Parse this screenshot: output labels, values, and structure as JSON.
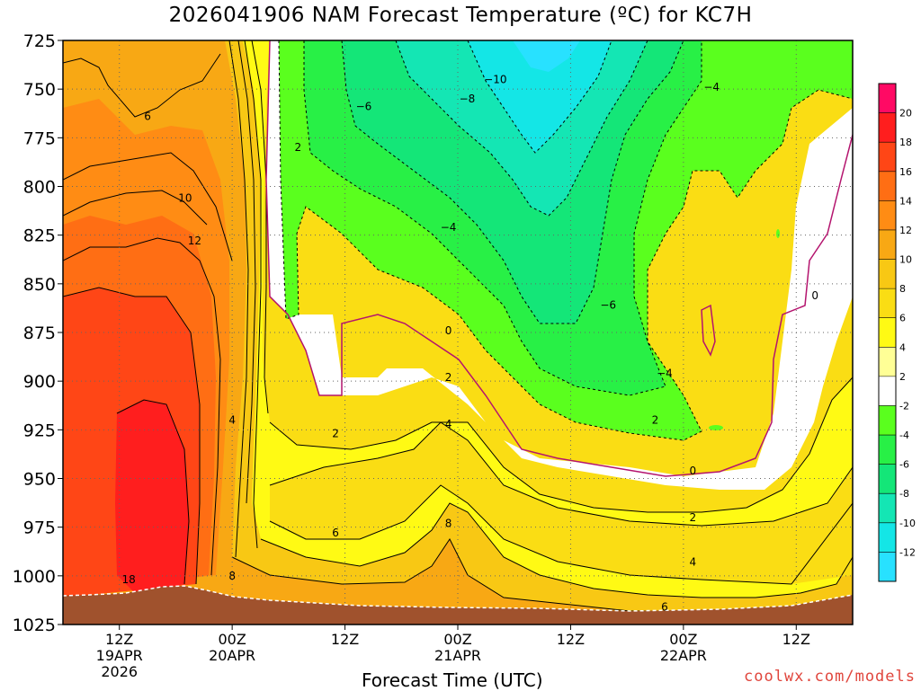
{
  "title": "2026041906 NAM Forecast Temperature (ºC) for KC7H",
  "xlabel": "Forecast Time (UTC)",
  "credit": "coolwx.com/models",
  "chart_data": {
    "type": "heatmap",
    "title": "2026041906 NAM Forecast Temperature (ºC) for KC7H",
    "xlabel": "Forecast Time (UTC)",
    "ylabel": "",
    "y_axis_inverted": true,
    "ylim": [
      1025,
      725
    ],
    "xlim_hours": [
      6,
      90
    ],
    "y_ticks": [
      725,
      750,
      775,
      800,
      825,
      850,
      875,
      900,
      925,
      950,
      975,
      1000,
      1025
    ],
    "x_ticks": [
      {
        "hour": 12,
        "lines": [
          "12Z",
          "19APR",
          "2026"
        ]
      },
      {
        "hour": 24,
        "lines": [
          "00Z",
          "20APR"
        ]
      },
      {
        "hour": 36,
        "lines": [
          "12Z"
        ]
      },
      {
        "hour": 48,
        "lines": [
          "00Z",
          "21APR"
        ]
      },
      {
        "hour": 60,
        "lines": [
          "12Z"
        ]
      },
      {
        "hour": 72,
        "lines": [
          "00Z",
          "22APR"
        ]
      },
      {
        "hour": 84,
        "lines": [
          "12Z"
        ]
      }
    ],
    "grid": true,
    "colorbar": {
      "levels": [
        20,
        18,
        16,
        14,
        12,
        10,
        8,
        6,
        4,
        2,
        -2,
        -4,
        -6,
        -8,
        -10,
        -12
      ],
      "colors": [
        "#ff0a64",
        "#ff1e1e",
        "#ff4616",
        "#ff6e14",
        "#ff8c14",
        "#f8a814",
        "#f8c814",
        "#fadd14",
        "#fffa14",
        "#ffff96",
        "#ffffff",
        "#5aff1e",
        "#28f046",
        "#14e678",
        "#14e6b4",
        "#14e6e6",
        "#28e1ff"
      ]
    },
    "contour_labels": [
      {
        "text": "6",
        "hour": 15,
        "p": 764
      },
      {
        "text": "10",
        "hour": 19,
        "p": 806
      },
      {
        "text": "12",
        "hour": 20,
        "p": 828
      },
      {
        "text": "18",
        "hour": 13,
        "p": 1002
      },
      {
        "text": "4",
        "hour": 24,
        "p": 920
      },
      {
        "text": "8",
        "hour": 24,
        "p": 1000
      },
      {
        "text": "2",
        "hour": 31,
        "p": 780
      },
      {
        "text": "−6",
        "hour": 38,
        "p": 759
      },
      {
        "text": "−8",
        "hour": 49,
        "p": 755
      },
      {
        "text": "−10",
        "hour": 52,
        "p": 745
      },
      {
        "text": "−4",
        "hour": 75,
        "p": 749
      },
      {
        "text": "−4",
        "hour": 47,
        "p": 821
      },
      {
        "text": "0",
        "hour": 47,
        "p": 874
      },
      {
        "text": "2",
        "hour": 47,
        "p": 898
      },
      {
        "text": "4",
        "hour": 47,
        "p": 922
      },
      {
        "text": "8",
        "hour": 47,
        "p": 973
      },
      {
        "text": "2",
        "hour": 35,
        "p": 927
      },
      {
        "text": "6",
        "hour": 35,
        "p": 978
      },
      {
        "text": "−6",
        "hour": 64,
        "p": 861
      },
      {
        "text": "−4",
        "hour": 70,
        "p": 896
      },
      {
        "text": "2",
        "hour": 69,
        "p": 920
      },
      {
        "text": "0",
        "hour": 73,
        "p": 946
      },
      {
        "text": "2",
        "hour": 73,
        "p": 970
      },
      {
        "text": "4",
        "hour": 73,
        "p": 993
      },
      {
        "text": "6",
        "hour": 70,
        "p": 1016
      },
      {
        "text": "0",
        "hour": 86,
        "p": 856
      }
    ],
    "ground_label": "terrain below surface"
  }
}
